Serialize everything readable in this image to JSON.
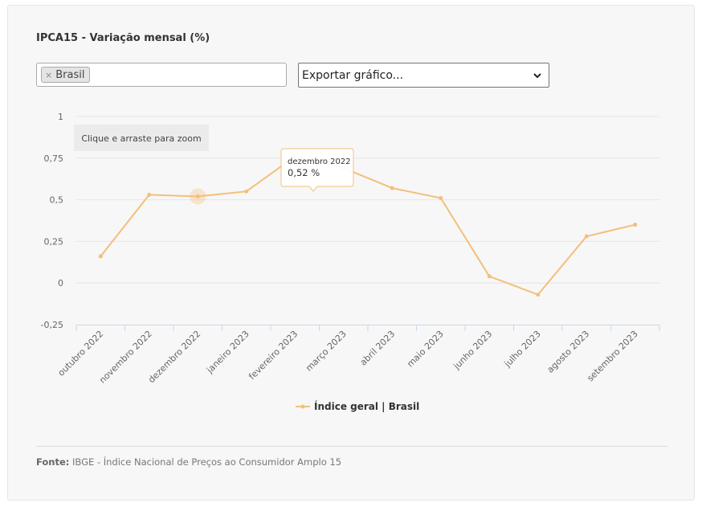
{
  "header": {
    "title": "IPCA15 - Variação mensal (%)"
  },
  "filter": {
    "chip_remove": "×",
    "chip_label": "Brasil"
  },
  "export": {
    "selected": "Exportar gráfico..."
  },
  "zoom_hint": "Clique e arraste para zoom",
  "tooltip": {
    "title": "dezembro 2022",
    "value": "0,52 %"
  },
  "footer": {
    "source_label": "Fonte:",
    "source_text": "IBGE - Índice Nacional de Preços ao Consumidor Amplo 15"
  },
  "colors": {
    "series": "#f4bf7a",
    "card_bg": "#f7f7f7",
    "axis": "#ccd6eb",
    "grid": "#e6e6e6"
  },
  "chart_data": {
    "type": "line",
    "categories": [
      "outubro 2022",
      "novembro 2022",
      "dezembro 2022",
      "janeiro 2023",
      "fevereiro 2023",
      "março 2023",
      "abril 2023",
      "maio 2023",
      "junho 2023",
      "julho 2023",
      "agosto 2023",
      "setembro 2023"
    ],
    "series": [
      {
        "name": "Índice geral | Brasil",
        "values": [
          0.16,
          0.53,
          0.52,
          0.55,
          0.76,
          0.69,
          0.57,
          0.51,
          0.04,
          -0.07,
          0.28,
          0.35
        ]
      }
    ],
    "ylim": [
      -0.25,
      1
    ],
    "yticks": [
      "-0,25",
      "0",
      "0,25",
      "0,5",
      "0,75",
      "1"
    ],
    "ytick_values": [
      -0.25,
      0,
      0.25,
      0.5,
      0.75,
      1
    ],
    "highlight_index": 2,
    "grid": true,
    "legend_position": "bottom-center"
  }
}
